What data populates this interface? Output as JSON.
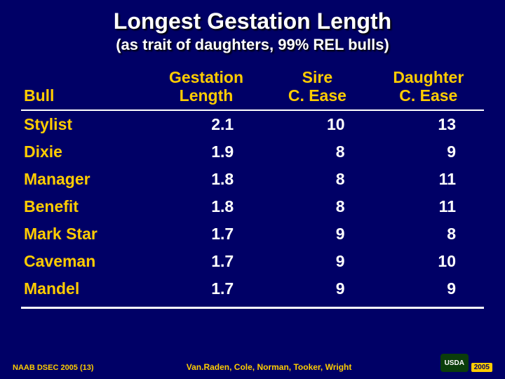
{
  "colors": {
    "background": "#000066",
    "title_text": "#ffffff",
    "header_text": "#ffcc00",
    "row_label_text": "#ffcc00",
    "cell_text": "#ffffff",
    "rule": "#ffffff",
    "footer_text": "#ffcc00"
  },
  "typography": {
    "title_fontsize_pt": 24,
    "subtitle_fontsize_pt": 17,
    "header_fontsize_pt": 17,
    "cell_fontsize_pt": 17,
    "footer_fontsize_pt": 8,
    "font_family": "Arial",
    "weight": "bold"
  },
  "title": "Longest Gestation Length",
  "subtitle": "(as trait of daughters, 99% REL bulls)",
  "table": {
    "type": "table",
    "columns": [
      {
        "key": "bull",
        "label_line1": "",
        "label_line2": "Bull",
        "align": "left",
        "width_pct": 28
      },
      {
        "key": "gest",
        "label_line1": "Gestation",
        "label_line2": "Length",
        "align": "center",
        "width_pct": 24
      },
      {
        "key": "sire",
        "label_line1": "Sire",
        "label_line2": "C. Ease",
        "align": "center",
        "width_pct": 24
      },
      {
        "key": "daughter",
        "label_line1": "Daughter",
        "label_line2": "C. Ease",
        "align": "center",
        "width_pct": 24
      }
    ],
    "rows": [
      {
        "bull": "Stylist",
        "gest": "2.1",
        "sire": "10",
        "daughter": "13"
      },
      {
        "bull": "Dixie",
        "gest": "1.9",
        "sire": "8",
        "daughter": "9"
      },
      {
        "bull": "Manager",
        "gest": "1.8",
        "sire": "8",
        "daughter": "11"
      },
      {
        "bull": "Benefit",
        "gest": "1.8",
        "sire": "8",
        "daughter": "11"
      },
      {
        "bull": "Mark Star",
        "gest": "1.7",
        "sire": "9",
        "daughter": "8"
      },
      {
        "bull": "Caveman",
        "gest": "1.7",
        "sire": "9",
        "daughter": "10"
      },
      {
        "bull": "Mandel",
        "gest": "1.7",
        "sire": "9",
        "daughter": "9"
      }
    ]
  },
  "footer": {
    "left": "NAAB DSEC 2005 (13)",
    "center": "Van.Raden, Cole, Norman, Tooker, Wright",
    "badge_text": "USDA",
    "year": "2005"
  }
}
